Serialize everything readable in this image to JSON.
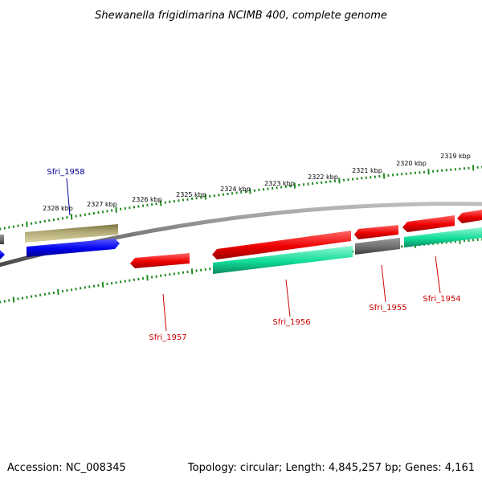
{
  "title": "Shewanella frigidimarina NCIMB 400, complete genome",
  "footer": {
    "accession": "Accession: NC_008345",
    "topology": "Topology: circular; Length: 4,845,257 bp; Genes: 4,161"
  },
  "colors": {
    "backbone": "#808080",
    "tick": "#228b22",
    "red": "#ee0000",
    "green": "#11dd99",
    "blue": "#0000ee",
    "olive": "#b4ad78",
    "gray": "#6e6e6e",
    "label_red": "#cc0000",
    "label_blue": "#000099"
  },
  "ruler": {
    "ticks": [
      {
        "label": "2328 kbp"
      },
      {
        "label": "2327 kbp"
      },
      {
        "label": "2326 kbp"
      },
      {
        "label": "2325 kbp"
      },
      {
        "label": "2324 kbp"
      },
      {
        "label": "2323 kbp"
      },
      {
        "label": "2322 kbp"
      },
      {
        "label": "2321 kbp"
      },
      {
        "label": "2320 kbp"
      },
      {
        "label": "2319 kbp"
      }
    ]
  },
  "genes": {
    "labels": [
      {
        "name": "Sfri_1958",
        "color": "label_blue"
      },
      {
        "name": "Sfri_1957",
        "color": "label_red"
      },
      {
        "name": "Sfri_1956",
        "color": "label_red"
      },
      {
        "name": "Sfri_1955",
        "color": "label_red"
      },
      {
        "name": "Sfri_1954",
        "color": "label_red"
      }
    ]
  }
}
